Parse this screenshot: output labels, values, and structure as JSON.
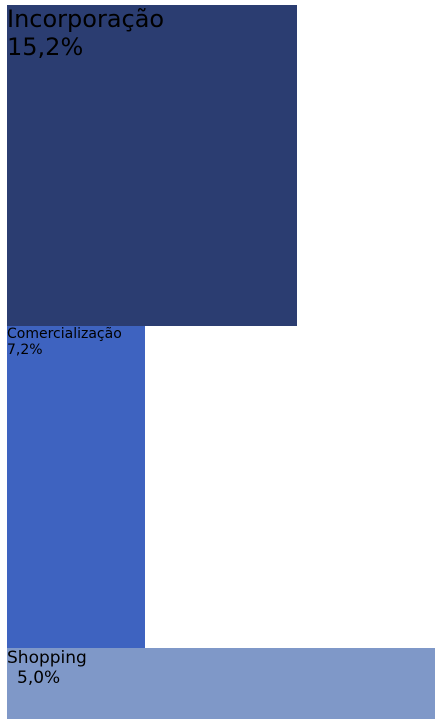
{
  "chart_data": {
    "type": "treemap",
    "categories": [
      "Incorporação",
      "Comercialização",
      "Shopping"
    ],
    "values": [
      15.2,
      7.2,
      5.0
    ],
    "value_labels": [
      "15,2%",
      "7,2%",
      "5,0%"
    ],
    "colors": [
      "#2b3d71",
      "#3e63c0",
      "#7f98c8"
    ]
  }
}
